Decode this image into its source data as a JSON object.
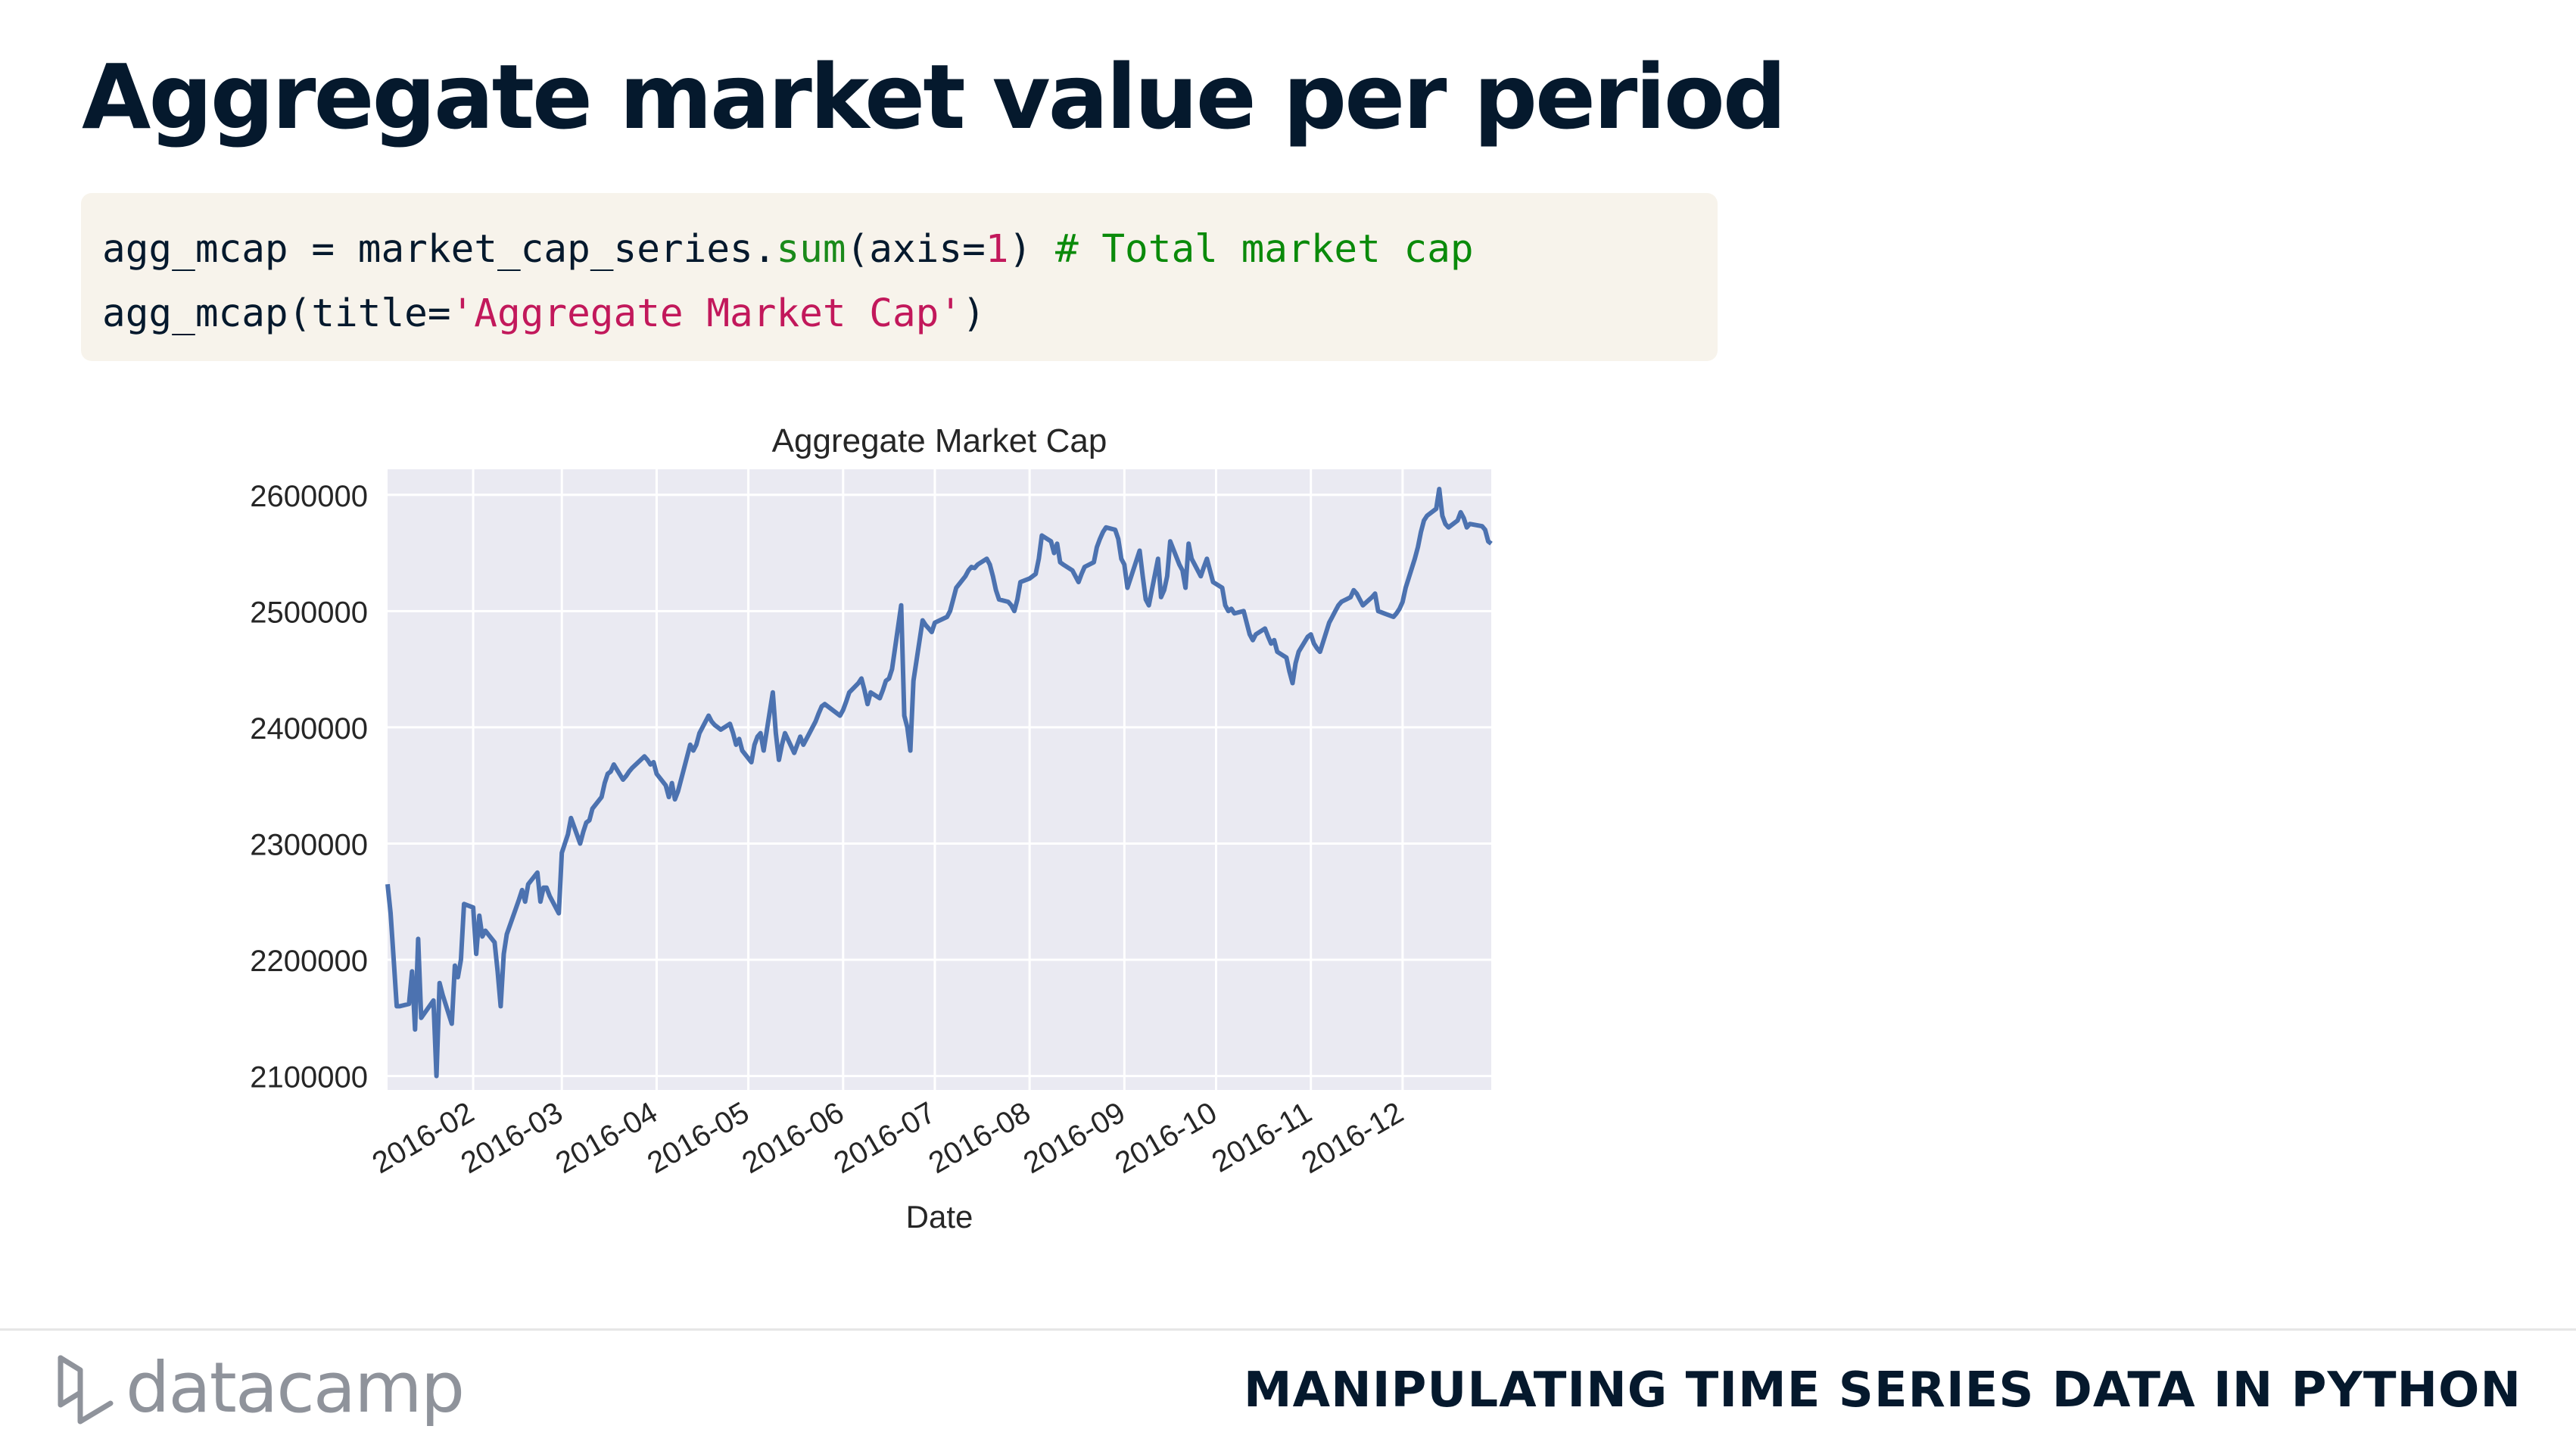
{
  "slide": {
    "title": "Aggregate market value per period",
    "code": {
      "line1": {
        "a": "agg_mcap = market_cap_series.",
        "fn": "sum",
        "b": "(axis=",
        "num": "1",
        "c": ") ",
        "comment": "# Total market cap"
      },
      "line2": {
        "a": "agg_mcap(title=",
        "str": "'Aggregate Market Cap'",
        "b": ")"
      }
    },
    "footer": {
      "brand": "datacamp",
      "course": "MANIPULATING TIME SERIES DATA IN PYTHON"
    }
  },
  "chart_data": {
    "type": "line",
    "title": "Aggregate Market Cap",
    "xlabel": "Date",
    "ylabel": "",
    "x_tick_labels": [
      "2016-02",
      "2016-03",
      "2016-04",
      "2016-05",
      "2016-06",
      "2016-07",
      "2016-08",
      "2016-09",
      "2016-10",
      "2016-11",
      "2016-12"
    ],
    "y_tick_labels": [
      "2100000",
      "2200000",
      "2300000",
      "2400000",
      "2500000",
      "2600000"
    ],
    "y_ticks": [
      2100000,
      2200000,
      2300000,
      2400000,
      2500000,
      2600000
    ],
    "xlim": [
      "2016-01-04",
      "2016-12-30"
    ],
    "ylim": [
      2088000,
      2622000
    ],
    "grid": true,
    "colors": {
      "line": "#4c72b0",
      "plot_bg": "#eaeaf2",
      "grid": "#ffffff"
    },
    "series": [
      {
        "points": [
          [
            "2016-01-04",
            2265000
          ],
          [
            "2016-01-05",
            2240000
          ],
          [
            "2016-01-06",
            2200000
          ],
          [
            "2016-01-07",
            2160000
          ],
          [
            "2016-01-08",
            2160000
          ],
          [
            "2016-01-11",
            2162000
          ],
          [
            "2016-01-12",
            2190000
          ],
          [
            "2016-01-13",
            2140000
          ],
          [
            "2016-01-14",
            2218000
          ],
          [
            "2016-01-15",
            2150000
          ],
          [
            "2016-01-19",
            2165000
          ],
          [
            "2016-01-20",
            2100000
          ],
          [
            "2016-01-21",
            2180000
          ],
          [
            "2016-01-22",
            2170000
          ],
          [
            "2016-01-25",
            2145000
          ],
          [
            "2016-01-26",
            2195000
          ],
          [
            "2016-01-27",
            2185000
          ],
          [
            "2016-01-28",
            2200000
          ],
          [
            "2016-01-29",
            2248000
          ],
          [
            "2016-02-01",
            2245000
          ],
          [
            "2016-02-02",
            2205000
          ],
          [
            "2016-02-03",
            2238000
          ],
          [
            "2016-02-04",
            2220000
          ],
          [
            "2016-02-05",
            2225000
          ],
          [
            "2016-02-08",
            2215000
          ],
          [
            "2016-02-09",
            2190000
          ],
          [
            "2016-02-10",
            2160000
          ],
          [
            "2016-02-11",
            2205000
          ],
          [
            "2016-02-12",
            2222000
          ],
          [
            "2016-02-16",
            2252000
          ],
          [
            "2016-02-17",
            2260000
          ],
          [
            "2016-02-18",
            2250000
          ],
          [
            "2016-02-19",
            2265000
          ],
          [
            "2016-02-22",
            2275000
          ],
          [
            "2016-02-23",
            2250000
          ],
          [
            "2016-02-24",
            2262000
          ],
          [
            "2016-02-25",
            2262000
          ],
          [
            "2016-02-26",
            2255000
          ],
          [
            "2016-02-29",
            2240000
          ],
          [
            "2016-03-01",
            2292000
          ],
          [
            "2016-03-02",
            2300000
          ],
          [
            "2016-03-03",
            2308000
          ],
          [
            "2016-03-04",
            2322000
          ],
          [
            "2016-03-07",
            2300000
          ],
          [
            "2016-03-08",
            2310000
          ],
          [
            "2016-03-09",
            2318000
          ],
          [
            "2016-03-10",
            2320000
          ],
          [
            "2016-03-11",
            2330000
          ],
          [
            "2016-03-14",
            2340000
          ],
          [
            "2016-03-15",
            2352000
          ],
          [
            "2016-03-16",
            2360000
          ],
          [
            "2016-03-17",
            2362000
          ],
          [
            "2016-03-18",
            2368000
          ],
          [
            "2016-03-21",
            2355000
          ],
          [
            "2016-03-22",
            2358000
          ],
          [
            "2016-03-23",
            2362000
          ],
          [
            "2016-03-24",
            2365000
          ],
          [
            "2016-03-28",
            2375000
          ],
          [
            "2016-03-29",
            2372000
          ],
          [
            "2016-03-30",
            2368000
          ],
          [
            "2016-03-31",
            2370000
          ],
          [
            "2016-04-01",
            2360000
          ],
          [
            "2016-04-04",
            2350000
          ],
          [
            "2016-04-05",
            2340000
          ],
          [
            "2016-04-06",
            2352000
          ],
          [
            "2016-04-07",
            2338000
          ],
          [
            "2016-04-08",
            2345000
          ],
          [
            "2016-04-11",
            2375000
          ],
          [
            "2016-04-12",
            2385000
          ],
          [
            "2016-04-13",
            2380000
          ],
          [
            "2016-04-14",
            2385000
          ],
          [
            "2016-04-15",
            2395000
          ],
          [
            "2016-04-18",
            2410000
          ],
          [
            "2016-04-19",
            2405000
          ],
          [
            "2016-04-20",
            2402000
          ],
          [
            "2016-04-21",
            2400000
          ],
          [
            "2016-04-22",
            2398000
          ],
          [
            "2016-04-25",
            2403000
          ],
          [
            "2016-04-26",
            2395000
          ],
          [
            "2016-04-27",
            2385000
          ],
          [
            "2016-04-28",
            2390000
          ],
          [
            "2016-04-29",
            2380000
          ],
          [
            "2016-05-02",
            2370000
          ],
          [
            "2016-05-03",
            2385000
          ],
          [
            "2016-05-04",
            2392000
          ],
          [
            "2016-05-05",
            2395000
          ],
          [
            "2016-05-06",
            2380000
          ],
          [
            "2016-05-09",
            2430000
          ],
          [
            "2016-05-10",
            2395000
          ],
          [
            "2016-05-11",
            2372000
          ],
          [
            "2016-05-12",
            2385000
          ],
          [
            "2016-05-13",
            2395000
          ],
          [
            "2016-05-16",
            2378000
          ],
          [
            "2016-05-17",
            2385000
          ],
          [
            "2016-05-18",
            2392000
          ],
          [
            "2016-05-19",
            2385000
          ],
          [
            "2016-05-20",
            2390000
          ],
          [
            "2016-05-23",
            2405000
          ],
          [
            "2016-05-24",
            2412000
          ],
          [
            "2016-05-25",
            2418000
          ],
          [
            "2016-05-26",
            2420000
          ],
          [
            "2016-05-27",
            2418000
          ],
          [
            "2016-05-31",
            2410000
          ],
          [
            "2016-06-01",
            2415000
          ],
          [
            "2016-06-02",
            2422000
          ],
          [
            "2016-06-03",
            2430000
          ],
          [
            "2016-06-06",
            2438000
          ],
          [
            "2016-06-07",
            2442000
          ],
          [
            "2016-06-08",
            2432000
          ],
          [
            "2016-06-09",
            2420000
          ],
          [
            "2016-06-10",
            2430000
          ],
          [
            "2016-06-13",
            2425000
          ],
          [
            "2016-06-14",
            2432000
          ],
          [
            "2016-06-15",
            2440000
          ],
          [
            "2016-06-16",
            2442000
          ],
          [
            "2016-06-17",
            2450000
          ],
          [
            "2016-06-20",
            2505000
          ],
          [
            "2016-06-21",
            2410000
          ],
          [
            "2016-06-22",
            2400000
          ],
          [
            "2016-06-23",
            2380000
          ],
          [
            "2016-06-24",
            2440000
          ],
          [
            "2016-06-27",
            2492000
          ],
          [
            "2016-06-28",
            2488000
          ],
          [
            "2016-06-29",
            2485000
          ],
          [
            "2016-06-30",
            2482000
          ],
          [
            "2016-07-01",
            2490000
          ],
          [
            "2016-07-05",
            2495000
          ],
          [
            "2016-07-06",
            2500000
          ],
          [
            "2016-07-07",
            2510000
          ],
          [
            "2016-07-08",
            2520000
          ],
          [
            "2016-07-11",
            2530000
          ],
          [
            "2016-07-12",
            2535000
          ],
          [
            "2016-07-13",
            2538000
          ],
          [
            "2016-07-14",
            2537000
          ],
          [
            "2016-07-15",
            2540000
          ],
          [
            "2016-07-18",
            2545000
          ],
          [
            "2016-07-19",
            2540000
          ],
          [
            "2016-07-20",
            2530000
          ],
          [
            "2016-07-21",
            2518000
          ],
          [
            "2016-07-22",
            2510000
          ],
          [
            "2016-07-25",
            2508000
          ],
          [
            "2016-07-26",
            2505000
          ],
          [
            "2016-07-27",
            2500000
          ],
          [
            "2016-07-28",
            2510000
          ],
          [
            "2016-07-29",
            2525000
          ],
          [
            "2016-08-01",
            2528000
          ],
          [
            "2016-08-02",
            2530000
          ],
          [
            "2016-08-03",
            2532000
          ],
          [
            "2016-08-04",
            2545000
          ],
          [
            "2016-08-05",
            2565000
          ],
          [
            "2016-08-08",
            2560000
          ],
          [
            "2016-08-09",
            2550000
          ],
          [
            "2016-08-10",
            2558000
          ],
          [
            "2016-08-11",
            2542000
          ],
          [
            "2016-08-12",
            2540000
          ],
          [
            "2016-08-15",
            2535000
          ],
          [
            "2016-08-16",
            2530000
          ],
          [
            "2016-08-17",
            2525000
          ],
          [
            "2016-08-18",
            2532000
          ],
          [
            "2016-08-19",
            2538000
          ],
          [
            "2016-08-22",
            2542000
          ],
          [
            "2016-08-23",
            2555000
          ],
          [
            "2016-08-24",
            2562000
          ],
          [
            "2016-08-25",
            2568000
          ],
          [
            "2016-08-26",
            2572000
          ],
          [
            "2016-08-29",
            2570000
          ],
          [
            "2016-08-30",
            2562000
          ],
          [
            "2016-08-31",
            2545000
          ],
          [
            "2016-09-01",
            2540000
          ],
          [
            "2016-09-02",
            2520000
          ],
          [
            "2016-09-06",
            2552000
          ],
          [
            "2016-09-07",
            2530000
          ],
          [
            "2016-09-08",
            2510000
          ],
          [
            "2016-09-09",
            2505000
          ],
          [
            "2016-09-12",
            2545000
          ],
          [
            "2016-09-13",
            2512000
          ],
          [
            "2016-09-14",
            2518000
          ],
          [
            "2016-09-15",
            2530000
          ],
          [
            "2016-09-16",
            2560000
          ],
          [
            "2016-09-19",
            2540000
          ],
          [
            "2016-09-20",
            2535000
          ],
          [
            "2016-09-21",
            2520000
          ],
          [
            "2016-09-22",
            2558000
          ],
          [
            "2016-09-23",
            2545000
          ],
          [
            "2016-09-26",
            2530000
          ],
          [
            "2016-09-27",
            2538000
          ],
          [
            "2016-09-28",
            2545000
          ],
          [
            "2016-09-29",
            2535000
          ],
          [
            "2016-09-30",
            2525000
          ],
          [
            "2016-10-03",
            2520000
          ],
          [
            "2016-10-04",
            2505000
          ],
          [
            "2016-10-05",
            2500000
          ],
          [
            "2016-10-06",
            2502000
          ],
          [
            "2016-10-07",
            2498000
          ],
          [
            "2016-10-10",
            2500000
          ],
          [
            "2016-10-11",
            2490000
          ],
          [
            "2016-10-12",
            2480000
          ],
          [
            "2016-10-13",
            2475000
          ],
          [
            "2016-10-14",
            2480000
          ],
          [
            "2016-10-17",
            2485000
          ],
          [
            "2016-10-18",
            2478000
          ],
          [
            "2016-10-19",
            2472000
          ],
          [
            "2016-10-20",
            2475000
          ],
          [
            "2016-10-21",
            2465000
          ],
          [
            "2016-10-24",
            2460000
          ],
          [
            "2016-10-25",
            2448000
          ],
          [
            "2016-10-26",
            2438000
          ],
          [
            "2016-10-27",
            2455000
          ],
          [
            "2016-10-28",
            2465000
          ],
          [
            "2016-10-31",
            2478000
          ],
          [
            "2016-11-01",
            2480000
          ],
          [
            "2016-11-02",
            2472000
          ],
          [
            "2016-11-03",
            2468000
          ],
          [
            "2016-11-04",
            2465000
          ],
          [
            "2016-11-07",
            2490000
          ],
          [
            "2016-11-08",
            2495000
          ],
          [
            "2016-11-09",
            2500000
          ],
          [
            "2016-11-10",
            2505000
          ],
          [
            "2016-11-11",
            2508000
          ],
          [
            "2016-11-14",
            2512000
          ],
          [
            "2016-11-15",
            2518000
          ],
          [
            "2016-11-16",
            2515000
          ],
          [
            "2016-11-17",
            2510000
          ],
          [
            "2016-11-18",
            2505000
          ],
          [
            "2016-11-21",
            2512000
          ],
          [
            "2016-11-22",
            2515000
          ],
          [
            "2016-11-23",
            2500000
          ],
          [
            "2016-11-25",
            2498000
          ],
          [
            "2016-11-28",
            2495000
          ],
          [
            "2016-11-29",
            2498000
          ],
          [
            "2016-11-30",
            2502000
          ],
          [
            "2016-12-01",
            2508000
          ],
          [
            "2016-12-02",
            2520000
          ],
          [
            "2016-12-05",
            2545000
          ],
          [
            "2016-12-06",
            2555000
          ],
          [
            "2016-12-07",
            2568000
          ],
          [
            "2016-12-08",
            2578000
          ],
          [
            "2016-12-09",
            2582000
          ],
          [
            "2016-12-12",
            2588000
          ],
          [
            "2016-12-13",
            2605000
          ],
          [
            "2016-12-14",
            2582000
          ],
          [
            "2016-12-15",
            2575000
          ],
          [
            "2016-12-16",
            2572000
          ],
          [
            "2016-12-19",
            2578000
          ],
          [
            "2016-12-20",
            2585000
          ],
          [
            "2016-12-21",
            2580000
          ],
          [
            "2016-12-22",
            2572000
          ],
          [
            "2016-12-23",
            2575000
          ],
          [
            "2016-12-27",
            2573000
          ],
          [
            "2016-12-28",
            2570000
          ],
          [
            "2016-12-29",
            2560000
          ],
          [
            "2016-12-30",
            2558000
          ]
        ]
      }
    ]
  }
}
